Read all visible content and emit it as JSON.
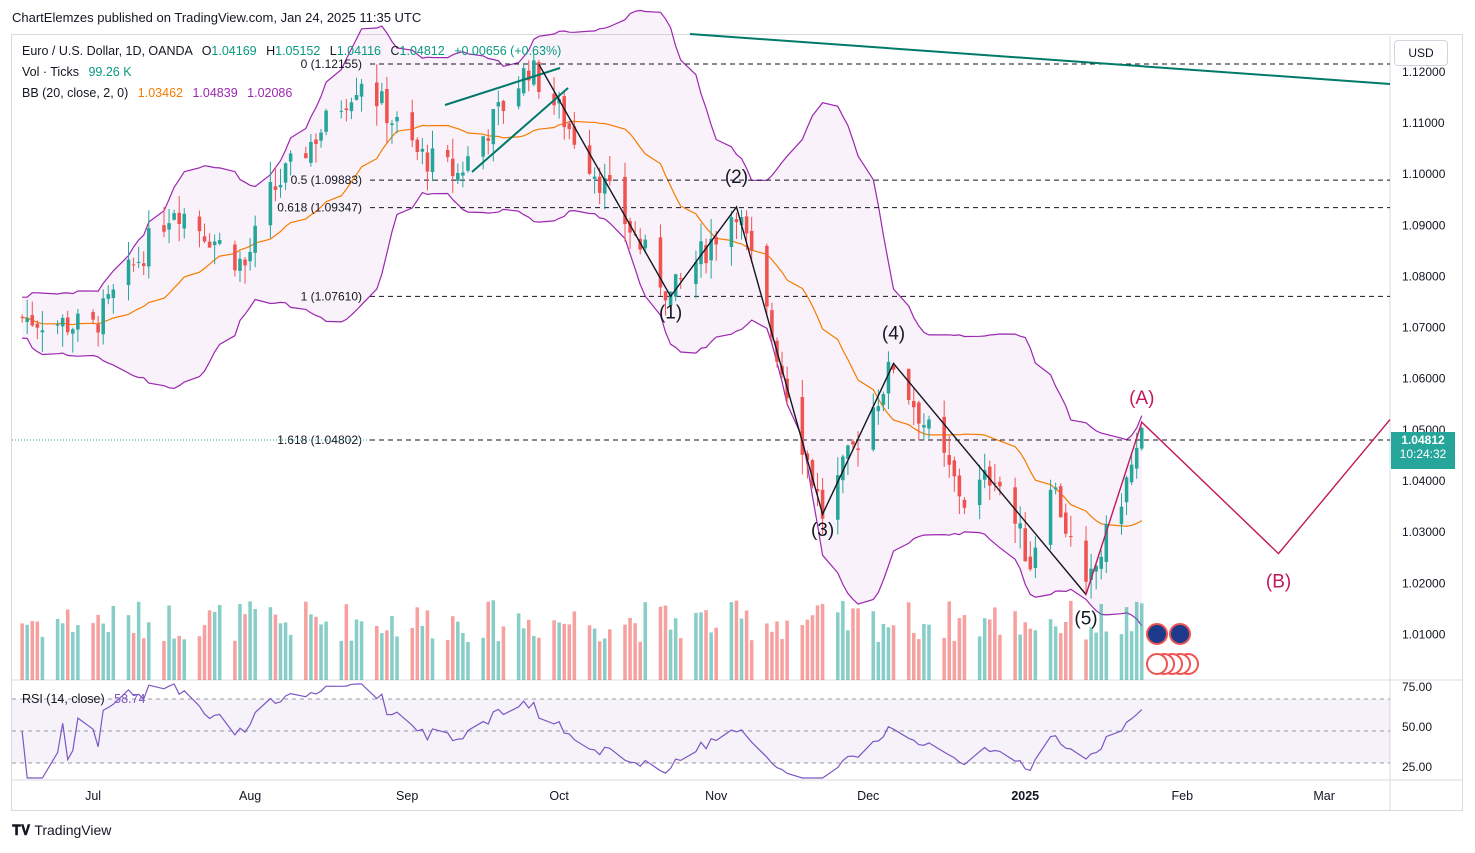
{
  "header": {
    "published": "ChartElemzes published on TradingView.com, Jan 24, 2025 11:35 UTC"
  },
  "legend": {
    "symbol": "Euro / U.S. Dollar, 1D, OANDA",
    "O_label": "O",
    "O": "1.04169",
    "H_label": "H",
    "H": "1.05152",
    "L_label": "L",
    "L": "1.04116",
    "C_label": "C",
    "C": "1.04812",
    "change": "+0.00656 (+0.63%)",
    "vol_label": "Vol · Ticks",
    "vol": "99.26 K",
    "bb_label": "BB (20, close, 2, 0)",
    "bb_basis": "1.03462",
    "bb_upper": "1.04839",
    "bb_lower": "1.02086",
    "rsi_label": "RSI (14, close)",
    "rsi": "58.74"
  },
  "currency_button": "USD",
  "last_price": {
    "price": "1.04812",
    "countdown": "10:24:32"
  },
  "footer": {
    "brand": "TradingView"
  },
  "colors": {
    "up": "#26a69a",
    "down": "#ef5350",
    "bb_band": "#9c27b0",
    "bb_basis": "#f57c00",
    "wave": "#c2185b",
    "trend": "#00796b",
    "rsi": "#7e57c2"
  },
  "chart_data": {
    "type": "candlestick",
    "price_axis": {
      "ticks": [
        "1.12000",
        "1.11000",
        "1.10000",
        "1.09000",
        "1.08000",
        "1.07000",
        "1.06000",
        "1.05000",
        "1.04000",
        "1.03000",
        "1.02000",
        "1.01000"
      ],
      "range": [
        1.0,
        1.125
      ]
    },
    "time_axis": {
      "ticks": [
        "Jul",
        "Aug",
        "Sep",
        "Oct",
        "Nov",
        "Dec",
        "2025",
        "Feb",
        "Mar"
      ],
      "range": [
        "2024-06-15",
        "2025-03-14"
      ]
    },
    "fib_levels": [
      {
        "label": "0 (1.12155)",
        "value": 1.12155
      },
      {
        "label": "0.5 (1.09883)",
        "value": 1.09883
      },
      {
        "label": "0.618 (1.09347)",
        "value": 1.09347
      },
      {
        "label": "1 (1.07610)",
        "value": 1.0761
      },
      {
        "label": "1.618 (1.04802)",
        "value": 1.04802
      }
    ],
    "elliott_waves": [
      {
        "label": "(1)",
        "date": "2024-10-23",
        "value": 1.0761
      },
      {
        "label": "(2)",
        "date": "2024-11-05",
        "value": 1.0936
      },
      {
        "label": "(3)",
        "date": "2024-11-22",
        "value": 1.0335
      },
      {
        "label": "(4)",
        "date": "2024-12-06",
        "value": 1.063
      },
      {
        "label": "(5)",
        "date": "2025-01-13",
        "value": 1.0178
      }
    ],
    "projection": [
      {
        "label": "(A)",
        "date": "2025-01-24",
        "value": 1.0515
      },
      {
        "label": "(B)",
        "date": "2025-02-20",
        "value": 1.0258
      }
    ],
    "rsi_axis": {
      "ticks": [
        "75.00",
        "50.00",
        "25.00"
      ],
      "levels": [
        70,
        50,
        30
      ]
    }
  }
}
